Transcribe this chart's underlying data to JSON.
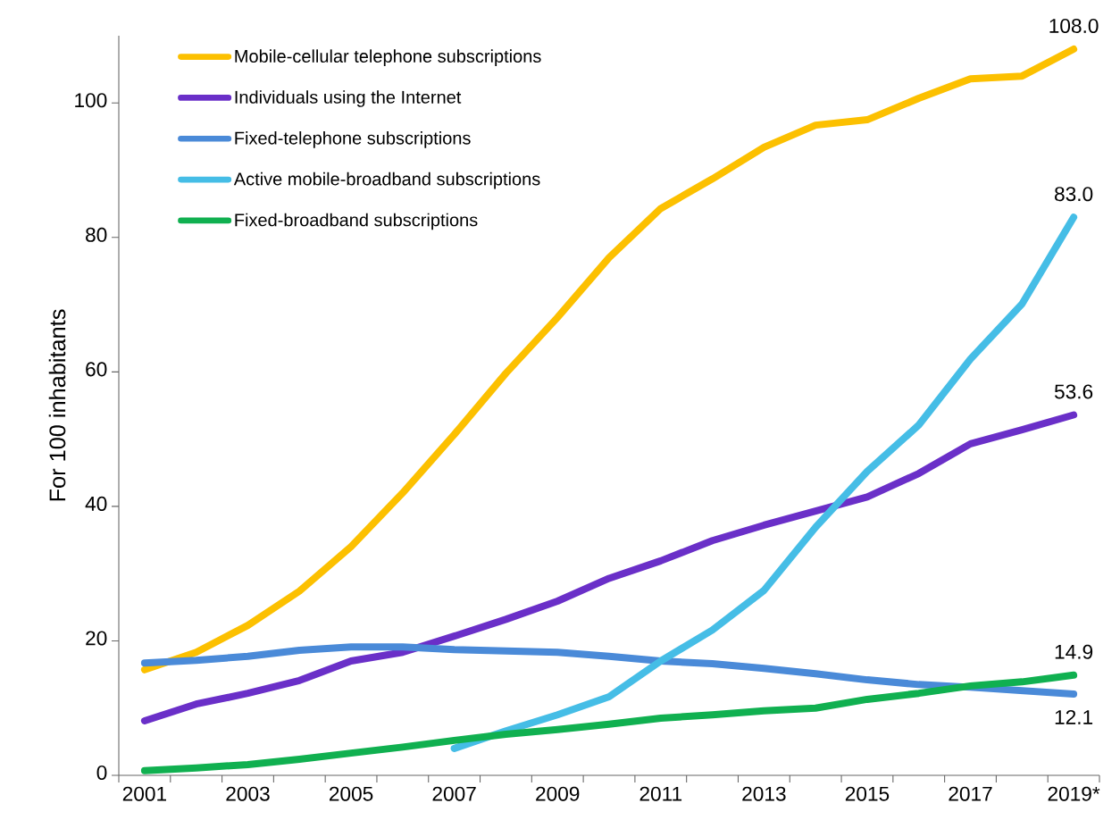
{
  "chart_data": {
    "type": "line",
    "ylabel": "For 100 inhabitants",
    "categories": [
      "2001",
      null,
      "2003",
      null,
      "2005",
      null,
      "2007",
      null,
      "2009",
      null,
      "2011",
      null,
      "2013",
      null,
      "2015",
      null,
      "2017",
      null,
      "2019*"
    ],
    "ylim": [
      0,
      110
    ],
    "yticks": [
      0,
      20,
      40,
      60,
      80,
      100
    ],
    "grid": false,
    "legend": "top left",
    "series": [
      {
        "name": "Mobile-cellular telephone subscriptions",
        "color": "#fcc000",
        "values": [
          15.7,
          18.3,
          22.3,
          27.4,
          34.0,
          42.0,
          50.7,
          59.8,
          68.1,
          77.0,
          84.3,
          88.7,
          93.4,
          96.7,
          97.5,
          100.7,
          103.6,
          104.0,
          108.0
        ],
        "value_labels": [
          null,
          null,
          null,
          null,
          null,
          null,
          null,
          null,
          null,
          null,
          null,
          null,
          null,
          null,
          null,
          null,
          null,
          null,
          "108.0"
        ]
      },
      {
        "name": "Individuals using the Internet",
        "color": "#6a2fc8",
        "values": [
          8.1,
          10.6,
          12.2,
          14.1,
          17.0,
          18.3,
          20.7,
          23.2,
          25.9,
          29.3,
          31.9,
          34.9,
          37.2,
          39.3,
          41.4,
          44.9,
          49.3,
          51.4,
          53.6
        ],
        "value_labels": [
          null,
          null,
          null,
          null,
          null,
          null,
          null,
          null,
          null,
          null,
          null,
          null,
          null,
          null,
          null,
          null,
          null,
          null,
          "53.6"
        ]
      },
      {
        "name": "Fixed-telephone subscriptions",
        "color": "#4a8ad8",
        "values": [
          16.7,
          17.1,
          17.7,
          18.6,
          19.1,
          19.1,
          18.7,
          18.5,
          18.3,
          17.7,
          17.0,
          16.6,
          15.9,
          15.1,
          14.2,
          13.5,
          13.1,
          12.6,
          12.1
        ],
        "value_labels": [
          null,
          null,
          null,
          null,
          null,
          null,
          null,
          null,
          null,
          null,
          null,
          null,
          null,
          null,
          null,
          null,
          null,
          null,
          "12.1"
        ]
      },
      {
        "name": "Active mobile-broadband subscriptions",
        "color": "#45bde6",
        "values": [
          null,
          null,
          null,
          null,
          null,
          null,
          4.0,
          6.6,
          9.0,
          11.7,
          17.0,
          21.6,
          27.5,
          36.9,
          45.2,
          52.1,
          61.9,
          70.1,
          83.0
        ],
        "value_labels": [
          null,
          null,
          null,
          null,
          null,
          null,
          null,
          null,
          null,
          null,
          null,
          null,
          null,
          null,
          null,
          null,
          null,
          null,
          "83.0"
        ]
      },
      {
        "name": "Fixed-broadband subscriptions",
        "color": "#10b050",
        "values": [
          0.7,
          1.1,
          1.6,
          2.4,
          3.3,
          4.2,
          5.2,
          6.1,
          6.8,
          7.6,
          8.5,
          9.0,
          9.6,
          10.0,
          11.3,
          12.2,
          13.3,
          13.9,
          14.9
        ],
        "value_labels": [
          null,
          null,
          null,
          null,
          null,
          null,
          null,
          null,
          null,
          null,
          null,
          null,
          null,
          null,
          null,
          null,
          null,
          null,
          "14.9"
        ]
      }
    ]
  }
}
